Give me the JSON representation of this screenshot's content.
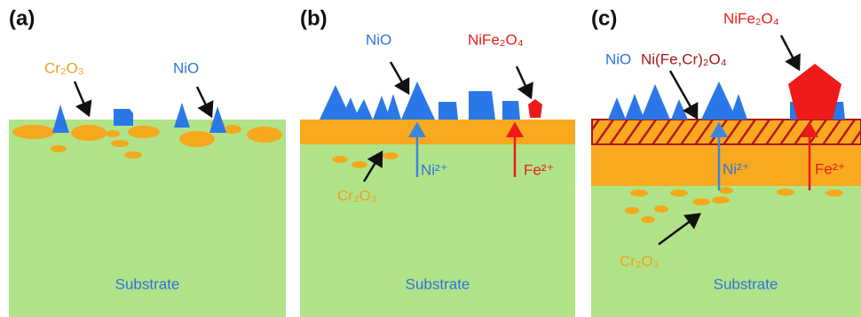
{
  "panels": [
    {
      "label": "(a)",
      "texts": {
        "cr2o3": "Cr₂O₃",
        "nio": "NiO",
        "substrate": "Substrate"
      }
    },
    {
      "label": "(b)",
      "texts": {
        "nio": "NiO",
        "nife2o4": "NiFe₂O₄",
        "ni": "Ni²⁺",
        "fe": "Fe²⁺",
        "cr2o3": "Cr₂O₃",
        "substrate": "Substrate"
      }
    },
    {
      "label": "(c)",
      "texts": {
        "nio": "NiO",
        "spinel": "Ni(Fe,Cr)₂O₄",
        "nife2o4": "NiFe₂O₄",
        "ni": "Ni²⁺",
        "fe": "Fe²⁺",
        "cr2o3": "Cr₂O₃",
        "substrate": "Substrate"
      }
    }
  ]
}
